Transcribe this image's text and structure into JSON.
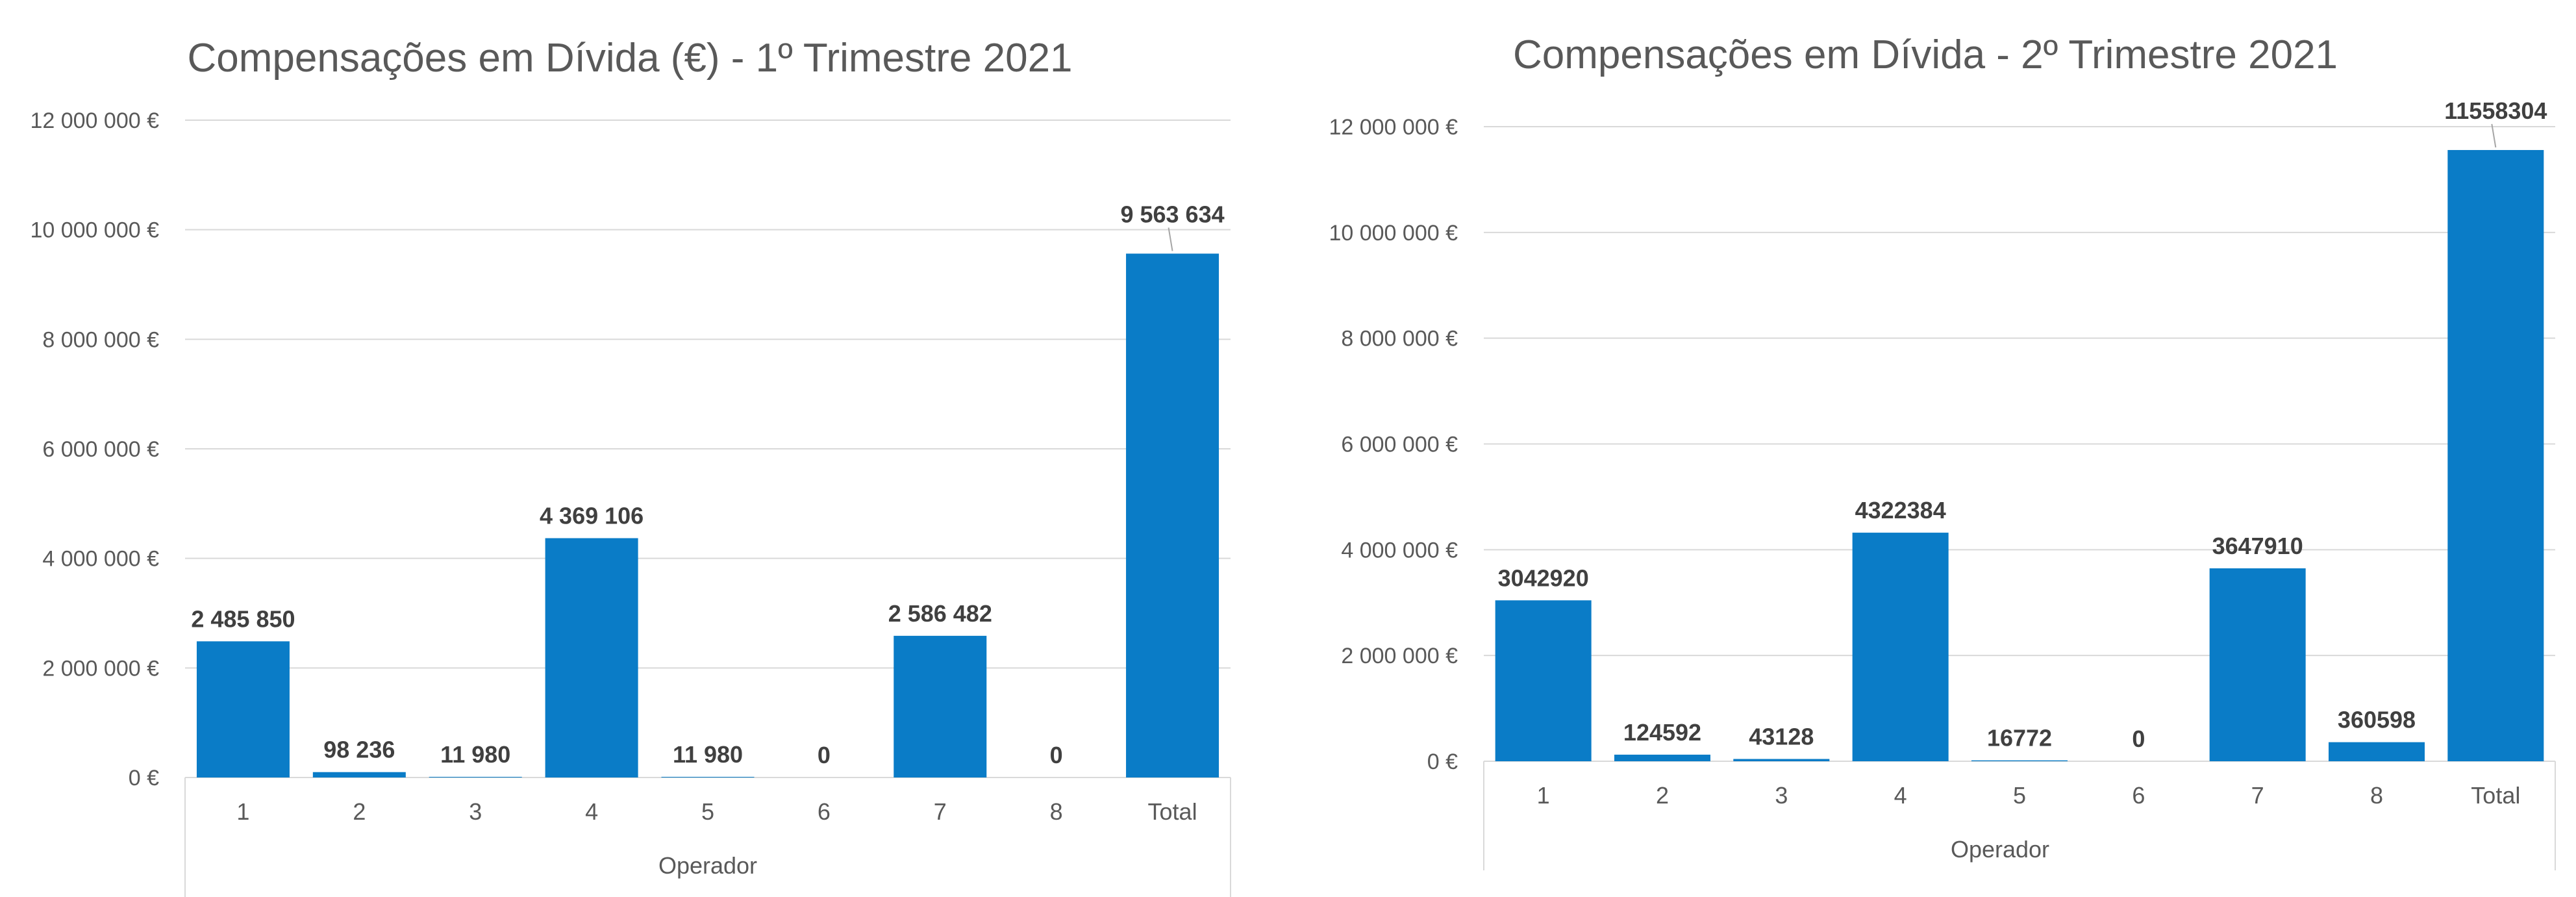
{
  "chart_data": [
    {
      "type": "bar",
      "title": "Compensações em Dívida (€) - 1º Trimestre 2021",
      "xlabel": "Operador",
      "ylabel": "",
      "ylim": [
        0,
        12000000
      ],
      "y_ticks": [
        "0 €",
        "2 000 000 €",
        "4 000 000 €",
        "6 000 000 €",
        "8 000 000 €",
        "10 000 000 €",
        "12 000 000 €"
      ],
      "categories": [
        "1",
        "2",
        "3",
        "4",
        "5",
        "6",
        "7",
        "8",
        "Total"
      ],
      "values": [
        2485850,
        98236,
        11980,
        4369106,
        11980,
        0,
        2586482,
        0,
        9563634
      ],
      "data_labels": [
        "2 485 850",
        "98 236",
        "11 980",
        "4 369 106",
        "11 980",
        "0",
        "2 586 482",
        "0",
        "9 563 634"
      ],
      "bar_color": "#0a7cc7",
      "grid": true
    },
    {
      "type": "bar",
      "title": "Compensações em Dívida - 2º Trimestre 2021",
      "xlabel": "Operador",
      "ylabel": "",
      "ylim": [
        0,
        12000000
      ],
      "y_ticks": [
        "0 €",
        "2 000 000 €",
        "4 000 000 €",
        "6 000 000 €",
        "8 000 000 €",
        "10 000 000 €",
        "12 000 000 €"
      ],
      "categories": [
        "1",
        "2",
        "3",
        "4",
        "5",
        "6",
        "7",
        "8",
        "Total"
      ],
      "values": [
        3042920,
        124592,
        43128,
        4322384,
        16772,
        0,
        3647910,
        360598,
        11558304
      ],
      "data_labels": [
        "3042920",
        "124592",
        "43128",
        "4322384",
        "16772",
        "0",
        "3647910",
        "360598",
        "11558304"
      ],
      "bar_color": "#0a7cc7",
      "grid": true
    }
  ]
}
